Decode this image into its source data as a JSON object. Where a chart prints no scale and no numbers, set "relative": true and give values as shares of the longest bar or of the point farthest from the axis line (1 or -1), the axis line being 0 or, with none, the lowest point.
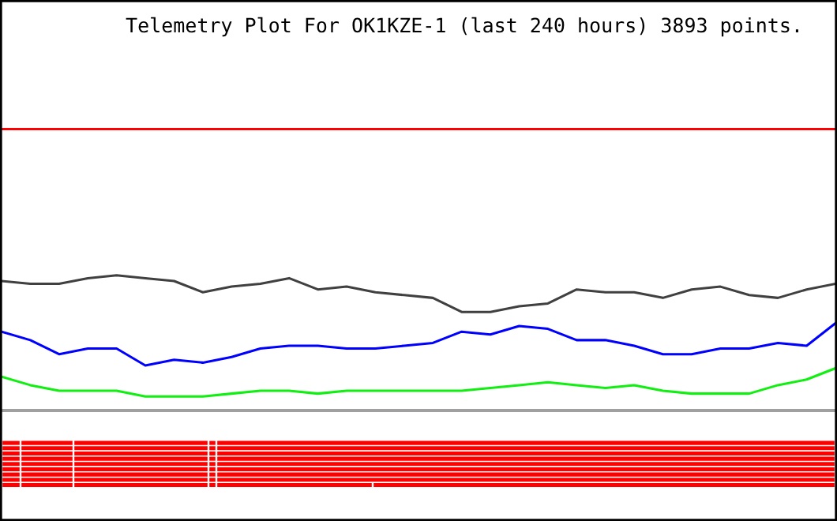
{
  "chart_data": {
    "type": "line",
    "title": "Telemetry Plot For OK1KZE-1 (last 240 hours) 3893 points.",
    "relative": true,
    "marker": "none",
    "line_style": "solid",
    "categories": [
      null,
      null,
      null,
      null,
      null,
      null,
      null,
      null,
      null,
      null,
      null,
      null,
      null,
      null,
      null,
      null,
      null,
      null,
      null,
      null,
      null,
      null,
      null,
      null,
      null,
      null,
      null,
      null,
      null,
      null
    ],
    "series": [
      {
        "color": "#ff0000",
        "values": [
          1,
          1,
          1,
          1,
          1,
          1,
          1,
          1,
          1,
          1,
          1,
          1,
          1,
          1,
          1,
          1,
          1,
          1,
          1,
          1,
          1,
          1,
          1,
          1,
          1,
          1,
          1,
          1,
          1,
          1
        ]
      },
      {
        "color": "#404040",
        "values": [
          0.46,
          0.45,
          0.45,
          0.47,
          0.48,
          0.47,
          0.46,
          0.42,
          0.44,
          0.45,
          0.47,
          0.43,
          0.44,
          0.42,
          0.41,
          0.4,
          0.35,
          0.35,
          0.37,
          0.38,
          0.43,
          0.42,
          0.42,
          0.4,
          0.43,
          0.44,
          0.41,
          0.4,
          0.43,
          0.45
        ]
      },
      {
        "color": "#0000ff",
        "values": [
          0.28,
          0.25,
          0.2,
          0.22,
          0.22,
          0.16,
          0.18,
          0.17,
          0.19,
          0.22,
          0.23,
          0.23,
          0.22,
          0.22,
          0.23,
          0.24,
          0.28,
          0.27,
          0.3,
          0.29,
          0.25,
          0.25,
          0.23,
          0.2,
          0.2,
          0.22,
          0.22,
          0.24,
          0.23,
          0.31
        ]
      },
      {
        "color": "#11ee11",
        "values": [
          0.12,
          0.09,
          0.07,
          0.07,
          0.07,
          0.05,
          0.05,
          0.05,
          0.06,
          0.07,
          0.07,
          0.06,
          0.07,
          0.07,
          0.07,
          0.07,
          0.07,
          0.08,
          0.09,
          0.1,
          0.09,
          0.08,
          0.09,
          0.07,
          0.06,
          0.06,
          0.06,
          0.09,
          0.11,
          0.15
        ]
      }
    ]
  }
}
